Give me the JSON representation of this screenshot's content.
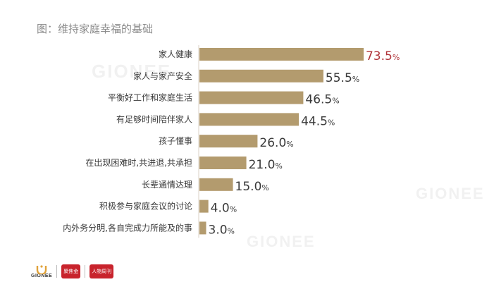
{
  "figure": {
    "title": "图：维持家庭幸福的基础"
  },
  "chart_data": {
    "type": "bar",
    "orientation": "horizontal",
    "title": "图：维持家庭幸福的基础",
    "categories": [
      "家人健康",
      "家人与家产安全",
      "平衡好工作和家庭生活",
      "有足够时间陪伴家人",
      "孩子懂事",
      "在出现困难时，共进退，共承担",
      "长辈通情达理",
      "积极参与家庭会议的讨论",
      "内外务分明，各自完成力所能及的事"
    ],
    "labels": [
      "家人健康",
      "家人与家产安全",
      "平衡好工作和家庭生活",
      "有足够时间陪伴家人",
      "孩子懂事",
      "在出现困难时,共进退,共承担",
      "长辈通情达理",
      "积极参与家庭会议的讨论",
      "内外务分明,各自完成力所能及的事"
    ],
    "values": [
      73.5,
      55.5,
      46.5,
      44.5,
      26.0,
      21.0,
      15.0,
      4.0,
      3.0
    ],
    "value_labels": [
      {
        "num": "73.5",
        "unit": "%"
      },
      {
        "num": "55.5",
        "unit": "%"
      },
      {
        "num": "46.5",
        "unit": "%"
      },
      {
        "num": "44.5",
        "unit": "%"
      },
      {
        "num": "26.0",
        "unit": "%"
      },
      {
        "num": "21.0",
        "unit": "%"
      },
      {
        "num": "15.0",
        "unit": "%"
      },
      {
        "num": "4.0",
        "unit": "%"
      },
      {
        "num": "3.0",
        "unit": "%"
      }
    ],
    "xlim": [
      0,
      100
    ],
    "grid": false,
    "colors": {
      "bar": "#b39b6e",
      "highlight_label": "#b0343a",
      "label": "#3a3a3a",
      "value": "#3a3a3a"
    }
  },
  "watermarks": [
    "GIONEE",
    "GIONEE",
    "GIONEE"
  ],
  "footer": {
    "brand": "GIONEE",
    "badge1": "聚焦金",
    "badge2": "人物周刊"
  }
}
